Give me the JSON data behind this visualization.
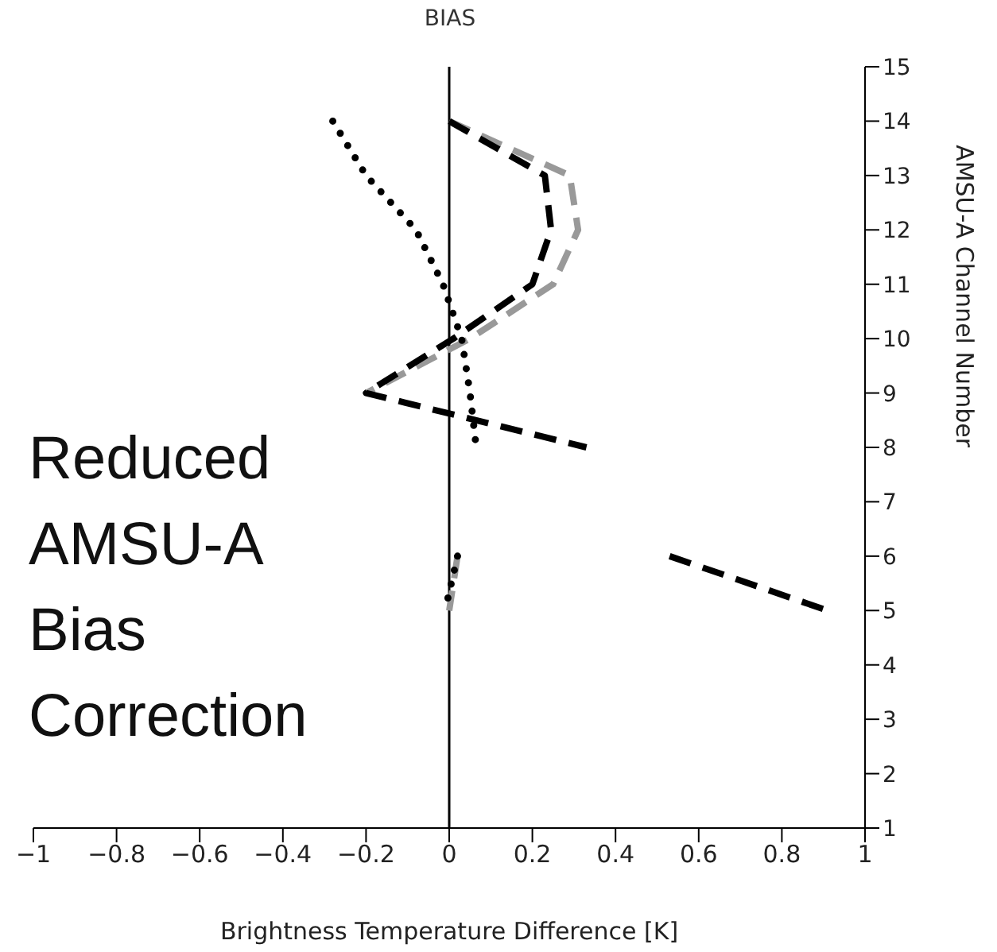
{
  "chart_data": {
    "type": "line",
    "title": "BIAS",
    "orientation": "horizontal",
    "xlabel": "Brightness Temperature Difference [K]",
    "ylabel": "AMSU-A Channel Number",
    "x": [
      14,
      13,
      12,
      11,
      10,
      9,
      8,
      7,
      6,
      5
    ],
    "series": [
      {
        "color": "#999999",
        "line_style": "dashed",
        "values": [
          0,
          0.29,
          0.31,
          0.25,
          0.05,
          -0.2,
          null,
          null,
          0.02,
          0
        ]
      },
      {
        "color": "#000000",
        "line_style": "dashed",
        "values": [
          0,
          0.23,
          0.245,
          0.2,
          0.01,
          -0.2,
          0.33,
          null,
          0.53,
          0.91
        ]
      },
      {
        "color": "#000000",
        "line_style": "dotted",
        "values": [
          -0.28,
          -0.2,
          -0.08,
          -0.015,
          0.03,
          0.05,
          0.065,
          null,
          0.02,
          -0.01
        ]
      }
    ],
    "xlim": [
      -1,
      1
    ],
    "xticks": [
      {
        "value": -1,
        "label": "−1"
      },
      {
        "value": -0.8,
        "label": "−0.8"
      },
      {
        "value": -0.6,
        "label": "−0.6"
      },
      {
        "value": -0.4,
        "label": "−0.4"
      },
      {
        "value": -0.2,
        "label": "−0.2"
      },
      0,
      0.2,
      0.4,
      0.6,
      0.8,
      1
    ],
    "ylim": [
      1,
      15
    ],
    "yticks": [
      1,
      2,
      3,
      4,
      5,
      6,
      7,
      8,
      9,
      10,
      11,
      12,
      13,
      14,
      15
    ],
    "ref_lines": [
      {
        "axis": "x",
        "value": 0,
        "color": "#000000"
      }
    ],
    "annotations": [
      "Reduced AMSU-A Bias Correction"
    ],
    "grid": false,
    "legend": false,
    "marker": "none"
  }
}
